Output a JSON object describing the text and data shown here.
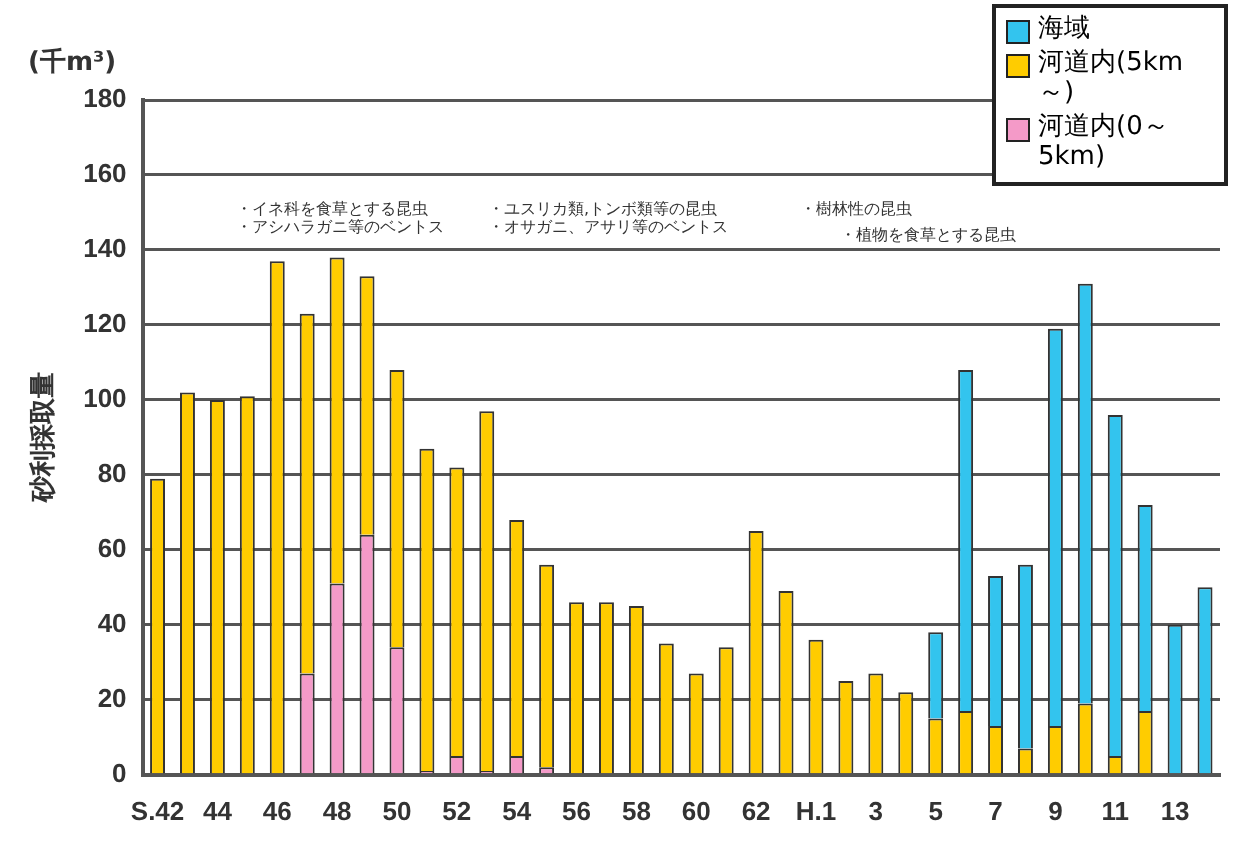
{
  "chart_data": {
    "type": "bar",
    "stacked": true,
    "ylabel": "砂利採取量",
    "categories": [
      "S.42",
      null,
      "44",
      null,
      "46",
      null,
      "48",
      null,
      "50",
      null,
      "52",
      null,
      "54",
      null,
      "56",
      null,
      "58",
      null,
      "60",
      null,
      "62",
      null,
      "H.1",
      null,
      "3",
      null,
      "5",
      null,
      "7",
      null,
      "9",
      null,
      "11",
      null,
      "13",
      null
    ],
    "series": [
      {
        "name": "河道内(0～5km)",
        "color": "#f49ac8",
        "values": [
          0,
          0,
          0,
          0,
          0,
          27,
          51,
          64,
          34,
          1,
          5,
          1,
          5,
          2,
          0,
          0,
          0,
          0,
          0,
          0,
          0,
          0,
          0,
          0,
          0,
          0,
          0,
          0,
          0,
          0,
          0,
          0,
          0,
          0,
          0,
          0
        ]
      },
      {
        "name": "河道内(5km～)",
        "color": "#ffcc00",
        "values": [
          79,
          102,
          100,
          101,
          137,
          96,
          87,
          69,
          74,
          86,
          77,
          96,
          63,
          54,
          46,
          46,
          45,
          35,
          27,
          34,
          65,
          49,
          36,
          25,
          27,
          22,
          15,
          17,
          13,
          7,
          13,
          19,
          5,
          17,
          0,
          0
        ]
      },
      {
        "name": "海域",
        "color": "#33c4ee",
        "values": [
          0,
          0,
          0,
          0,
          0,
          0,
          0,
          0,
          0,
          0,
          0,
          0,
          0,
          0,
          0,
          0,
          0,
          0,
          0,
          0,
          0,
          0,
          0,
          0,
          0,
          0,
          23,
          91,
          40,
          49,
          106,
          112,
          91,
          55,
          40,
          50
        ]
      }
    ],
    "ylim": [
      0,
      180
    ],
    "yticks": [
      0,
      20,
      40,
      60,
      80,
      100,
      120,
      140,
      160,
      180
    ],
    "grid": "y",
    "legend": "top right",
    "annotations": [
      "(千m³)",
      "・イネ科を食草とする昆虫",
      "・アシハラガニ等のベントス",
      "・ユスリカ類,トンボ類等の昆虫",
      "・オサガニ、アサリ等のベントス",
      "・樹林性の昆虫",
      "・植物を食草とする昆虫"
    ]
  }
}
